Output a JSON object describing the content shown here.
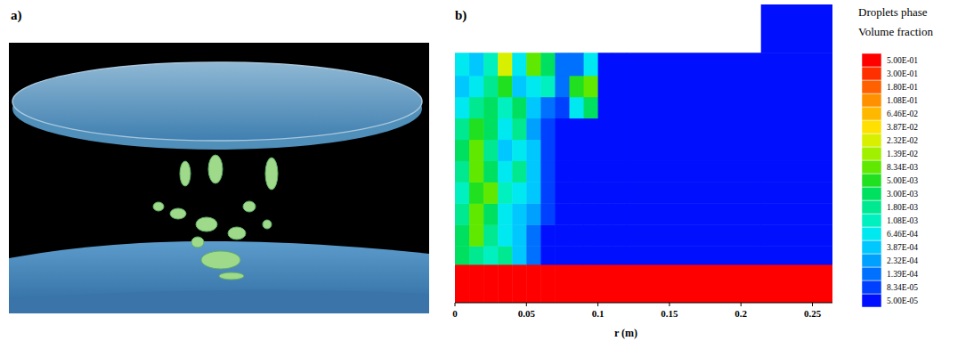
{
  "panel_labels": [
    "a)",
    "b)"
  ],
  "chart_data": {
    "type": "heatmap",
    "x_label": "r (m)",
    "xlim": [
      0,
      0.264
    ],
    "ylim": [
      0,
      0.21
    ],
    "xticks": [
      0,
      0.05,
      0.1,
      0.15,
      0.2,
      0.25
    ],
    "tick_labels": "x",
    "grid": false,
    "cells": {
      "x_edges": [
        0,
        0.01,
        0.02,
        0.03,
        0.04,
        0.05,
        0.06,
        0.07,
        0.08,
        0.09,
        0.1,
        0.11,
        0.12,
        0.214,
        0.264
      ],
      "y_edges": [
        0,
        0.027,
        0.04,
        0.055,
        0.07,
        0.085,
        0.1,
        0.115,
        0.13,
        0.145,
        0.16,
        0.176,
        0.21
      ],
      "values": [
        [
          0.5,
          0.5,
          0.5,
          0.5,
          0.5,
          0.5,
          0.5,
          0.5,
          0.5,
          0.5,
          0.5,
          0.5,
          0.5,
          0.5
        ],
        [
          0.003,
          0.002,
          0.0015,
          0.002,
          0.0005,
          0.0002,
          5e-05,
          5e-05,
          5e-05,
          5e-05,
          5e-05,
          5e-05,
          5e-05,
          5e-05
        ],
        [
          0.004,
          0.01,
          0.002,
          0.001,
          0.0005,
          0.0002,
          5e-05,
          5e-05,
          5e-05,
          5e-05,
          5e-05,
          5e-05,
          5e-05,
          5e-05
        ],
        [
          0.002,
          0.012,
          0.004,
          0.001,
          0.0006,
          0.0003,
          0.0001,
          5e-05,
          5e-05,
          5e-05,
          5e-05,
          5e-05,
          5e-05,
          5e-05
        ],
        [
          0.0015,
          0.005,
          0.009,
          0.0015,
          0.001,
          0.0004,
          0.0001,
          5e-05,
          5e-05,
          5e-05,
          5e-05,
          5e-05,
          5e-05,
          5e-05
        ],
        [
          0.002,
          0.01,
          0.003,
          0.001,
          0.002,
          0.0005,
          0.0001,
          5e-05,
          5e-05,
          5e-05,
          5e-05,
          5e-05,
          5e-05,
          5e-05
        ],
        [
          0.003,
          0.009,
          0.002,
          0.0006,
          0.0008,
          0.0005,
          0.0001,
          5e-05,
          5e-05,
          5e-05,
          5e-05,
          5e-05,
          5e-05,
          5e-05
        ],
        [
          0.002,
          0.005,
          0.003,
          0.001,
          0.002,
          0.0003,
          0.0001,
          5e-05,
          5e-05,
          5e-05,
          5e-05,
          5e-05,
          5e-05,
          5e-05
        ],
        [
          0.001,
          0.002,
          0.003,
          0.0015,
          0.004,
          0.0004,
          0.0002,
          0.0001,
          0.001,
          0.004,
          5e-05,
          5e-05,
          5e-05,
          5e-05
        ],
        [
          0.0006,
          0.001,
          0.002,
          0.008,
          0.0006,
          0.001,
          0.0015,
          0.0002,
          0.005,
          0.009,
          5e-05,
          5e-05,
          5e-05,
          5e-05
        ],
        [
          0.001,
          0.0004,
          0.0015,
          0.025,
          0.001,
          0.01,
          0.004,
          0.0002,
          0.0002,
          0.001,
          5e-05,
          5e-05,
          5e-05,
          5e-05
        ],
        [
          null,
          null,
          null,
          null,
          null,
          null,
          null,
          null,
          null,
          null,
          null,
          null,
          null,
          5e-05
        ]
      ]
    },
    "colorbar": {
      "title": [
        "Droplets phase",
        "Volume fraction"
      ],
      "ticks": [
        {
          "value": 5e-05,
          "label": "5.00E-05"
        },
        {
          "value": 8.34e-05,
          "label": "8.34E-05"
        },
        {
          "value": 0.000139,
          "label": "1.39E-04"
        },
        {
          "value": 0.000232,
          "label": "2.32E-04"
        },
        {
          "value": 0.000387,
          "label": "3.87E-04"
        },
        {
          "value": 0.000646,
          "label": "6.46E-04"
        },
        {
          "value": 0.00108,
          "label": "1.08E-03"
        },
        {
          "value": 0.0018,
          "label": "1.80E-03"
        },
        {
          "value": 0.003,
          "label": "3.00E-03"
        },
        {
          "value": 0.005,
          "label": "5.00E-03"
        },
        {
          "value": 0.00834,
          "label": "8.34E-03"
        },
        {
          "value": 0.0139,
          "label": "1.39E-02"
        },
        {
          "value": 0.0232,
          "label": "2.32E-02"
        },
        {
          "value": 0.0387,
          "label": "3.87E-02"
        },
        {
          "value": 0.0646,
          "label": "6.46E-02"
        },
        {
          "value": 0.108,
          "label": "1.08E-01"
        },
        {
          "value": 0.18,
          "label": "1.80E-01"
        },
        {
          "value": 0.3,
          "label": "3.00E-01"
        },
        {
          "value": 0.5,
          "label": "5.00E-01"
        }
      ],
      "colors": [
        "#0010ff",
        "#0040ff",
        "#0070ff",
        "#00a0ff",
        "#00c8ff",
        "#00e8f0",
        "#00f0c0",
        "#00e890",
        "#00e060",
        "#20e020",
        "#60e800",
        "#a0f000",
        "#d8f000",
        "#ffe000",
        "#ffb800",
        "#ff9000",
        "#ff6000",
        "#ff3000",
        "#ff0000"
      ]
    }
  }
}
